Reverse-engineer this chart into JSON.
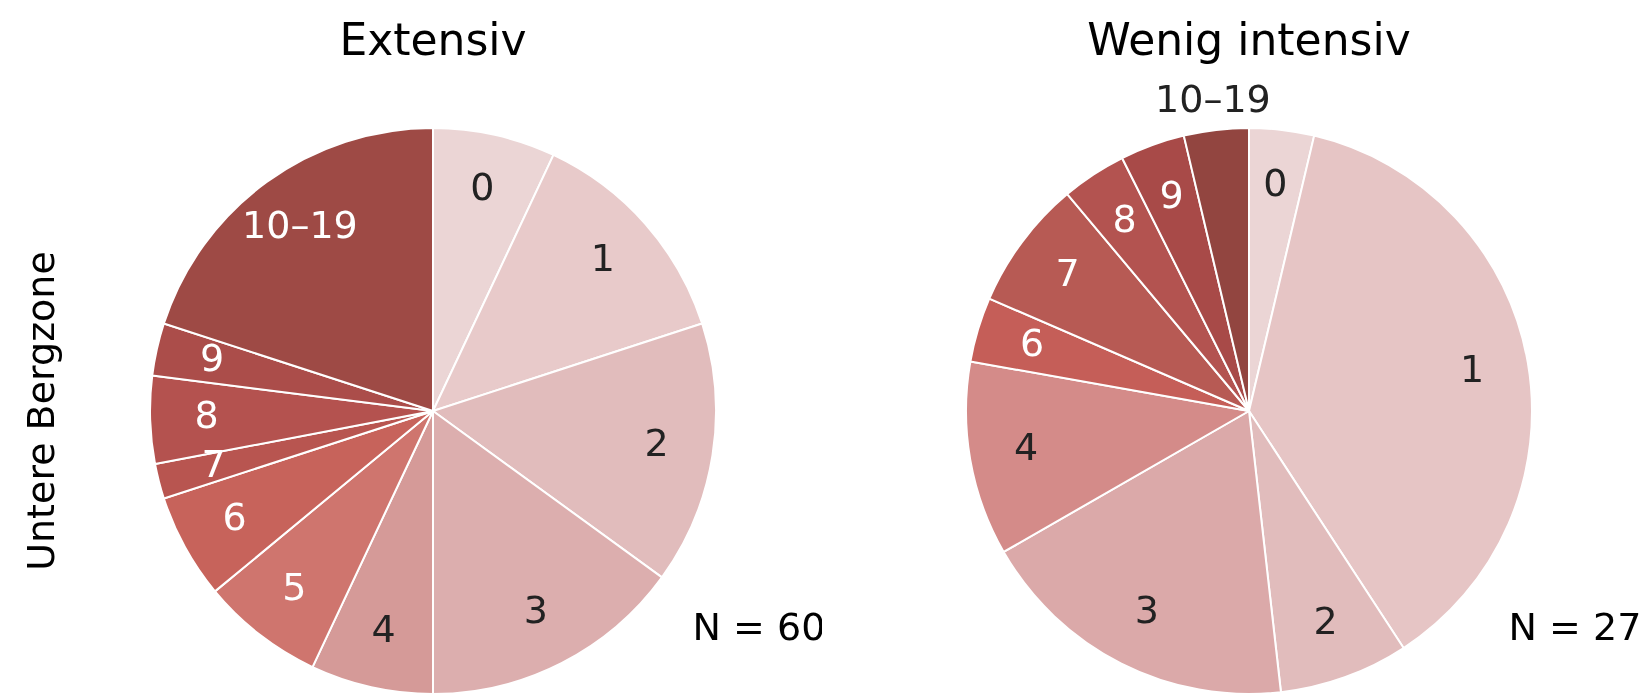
{
  "chart_data": [
    {
      "type": "pie",
      "title": "Extensiv",
      "ylabel": "Untere Bergzone",
      "categories": [
        "0",
        "1",
        "2",
        "3",
        "4",
        "5",
        "6",
        "7",
        "8",
        "9",
        "10–19"
      ],
      "values": [
        7,
        13,
        15,
        15,
        7,
        7,
        6,
        2,
        5,
        3,
        20
      ],
      "colors": [
        "#ebd5d5",
        "#e8caca",
        "#e1bcbc",
        "#dcaeae",
        "#d59a98",
        "#cf756e",
        "#c7635b",
        "#b85550",
        "#b4524f",
        "#ab4d4a",
        "#9e4a45"
      ],
      "annotations": [
        "N = 60"
      ]
    },
    {
      "type": "pie",
      "title": "Wenig intensiv",
      "categories": [
        "0",
        "1",
        "2",
        "3",
        "4",
        "6",
        "7",
        "8",
        "9",
        "10–19"
      ],
      "values": [
        3.7,
        37.1,
        7.4,
        18.5,
        11.1,
        3.7,
        7.4,
        3.7,
        3.7,
        3.7
      ],
      "colors": [
        "#ebd5d5",
        "#e6c5c5",
        "#e1bcbc",
        "#dba9a9",
        "#d48b89",
        "#c55e58",
        "#b75a54",
        "#b35350",
        "#a84a48",
        "#924540"
      ],
      "annotations": [
        "N = 27"
      ]
    }
  ]
}
